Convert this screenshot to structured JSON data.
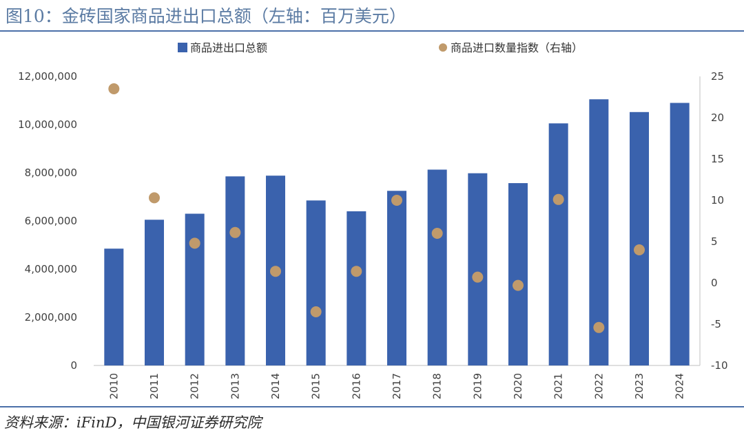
{
  "title": "图10：金砖国家商品进出口总额（左轴：百万美元）",
  "source": "资料来源：iFinD，中国银河证券研究院",
  "chart_data": {
    "type": "bar",
    "categories": [
      "2010",
      "2011",
      "2012",
      "2013",
      "2014",
      "2015",
      "2016",
      "2017",
      "2018",
      "2019",
      "2020",
      "2021",
      "2022",
      "2023",
      "2024"
    ],
    "series": [
      {
        "name": "商品进出口总额",
        "type": "bar",
        "axis": "left",
        "color": "#3a62ad",
        "values": [
          4850000,
          6050000,
          6300000,
          7850000,
          7880000,
          6850000,
          6400000,
          7250000,
          8130000,
          7980000,
          7570000,
          10050000,
          11050000,
          10520000,
          10900000
        ]
      },
      {
        "name": "商品进口数量指数（右轴）",
        "type": "scatter",
        "axis": "right",
        "color": "#c09a6b",
        "values": [
          23.5,
          10.3,
          4.8,
          6.1,
          1.4,
          -3.5,
          1.4,
          10.0,
          6.0,
          0.7,
          -0.3,
          10.1,
          -5.4,
          4.0,
          null
        ]
      }
    ],
    "left_axis": {
      "ylim": [
        0,
        12000000
      ],
      "ticks": [
        "0",
        "2,000,000",
        "4,000,000",
        "6,000,000",
        "8,000,000",
        "10,000,000",
        "12,000,000"
      ]
    },
    "right_axis": {
      "ylim": [
        -10,
        25
      ],
      "ticks": [
        "-10",
        "-5",
        "0",
        "5",
        "10",
        "15",
        "20",
        "25"
      ]
    },
    "grid": false,
    "legend_position": "top"
  }
}
